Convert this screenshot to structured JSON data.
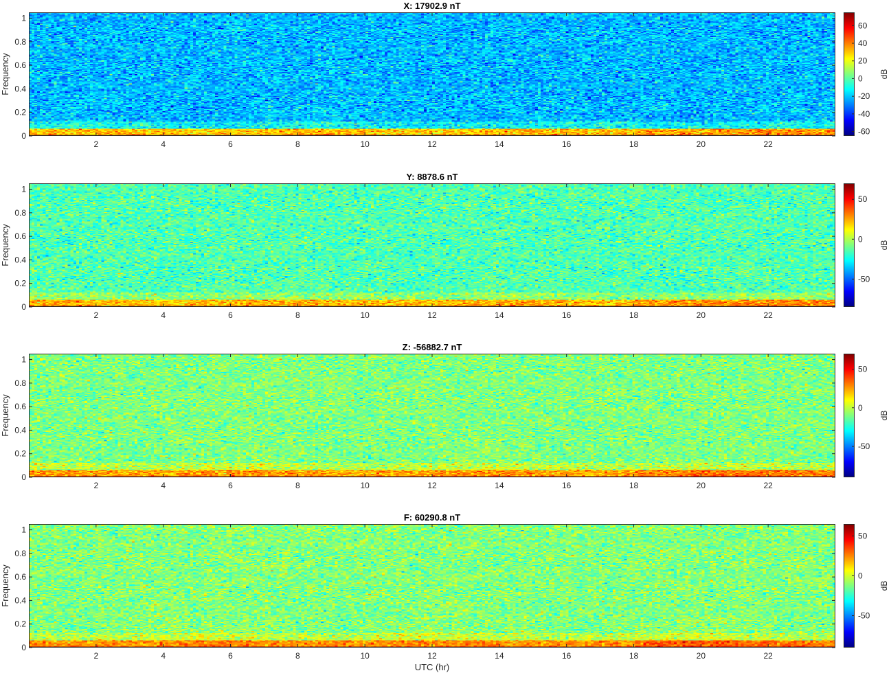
{
  "figure": {
    "xlabel": "UTC (hr)"
  },
  "chart_data": [
    {
      "type": "heatmap",
      "title": "X: 17902.9 nT",
      "ylabel": "Frequency",
      "xlim": [
        0,
        24
      ],
      "ylim": [
        0,
        1.05
      ],
      "xticks": [
        2,
        4,
        6,
        8,
        10,
        12,
        14,
        16,
        18,
        20,
        22
      ],
      "yticks": [
        0,
        0.2,
        0.4,
        0.6,
        0.8,
        1
      ],
      "ytick_labels": [
        "0",
        "0.2",
        "0.4",
        "0.6",
        "0.8",
        "1"
      ],
      "colorbar": {
        "label": "dB",
        "clim": [
          -65,
          75
        ],
        "ticks": [
          -60,
          -40,
          -20,
          0,
          20,
          40,
          60
        ]
      },
      "background_db": -22,
      "low_freq_band_db": 30,
      "dc_line_db": 70,
      "colormap": "jet"
    },
    {
      "type": "heatmap",
      "title": "Y: 8878.6 nT",
      "ylabel": "Frequency",
      "xlim": [
        0,
        24
      ],
      "ylim": [
        0,
        1.05
      ],
      "xticks": [
        2,
        4,
        6,
        8,
        10,
        12,
        14,
        16,
        18,
        20,
        22
      ],
      "yticks": [
        0,
        0.2,
        0.4,
        0.6,
        0.8,
        1
      ],
      "ytick_labels": [
        "0",
        "0.2",
        "0.4",
        "0.6",
        "0.8",
        "1"
      ],
      "colorbar": {
        "label": "dB",
        "clim": [
          -85,
          70
        ],
        "ticks": [
          -50,
          0,
          50
        ]
      },
      "background_db": -15,
      "low_freq_band_db": 22,
      "dc_line_db": 65,
      "colormap": "jet"
    },
    {
      "type": "heatmap",
      "title": "Z: -56882.7 nT",
      "ylabel": "Frequency",
      "xlim": [
        0,
        24
      ],
      "ylim": [
        0,
        1.05
      ],
      "xticks": [
        2,
        4,
        6,
        8,
        10,
        12,
        14,
        16,
        18,
        20,
        22
      ],
      "yticks": [
        0,
        0.2,
        0.4,
        0.6,
        0.8,
        1
      ],
      "ytick_labels": [
        "0",
        "0.2",
        "0.4",
        "0.6",
        "0.8",
        "1"
      ],
      "colorbar": {
        "label": "dB",
        "clim": [
          -90,
          70
        ],
        "ticks": [
          -50,
          0,
          50
        ]
      },
      "background_db": -10,
      "low_freq_band_db": 25,
      "dc_line_db": 65,
      "colormap": "jet"
    },
    {
      "type": "heatmap",
      "title": "F: 60290.8 nT",
      "ylabel": "Frequency",
      "xlim": [
        0,
        24
      ],
      "ylim": [
        0,
        1.05
      ],
      "xticks": [
        2,
        4,
        6,
        8,
        10,
        12,
        14,
        16,
        18,
        20,
        22
      ],
      "yticks": [
        0,
        0.2,
        0.4,
        0.6,
        0.8,
        1
      ],
      "ytick_labels": [
        "0",
        "0.2",
        "0.4",
        "0.6",
        "0.8",
        "1"
      ],
      "colorbar": {
        "label": "dB",
        "clim": [
          -90,
          65
        ],
        "ticks": [
          -50,
          0,
          50
        ]
      },
      "background_db": -12,
      "low_freq_band_db": 24,
      "dc_line_db": 62,
      "colormap": "jet"
    }
  ]
}
